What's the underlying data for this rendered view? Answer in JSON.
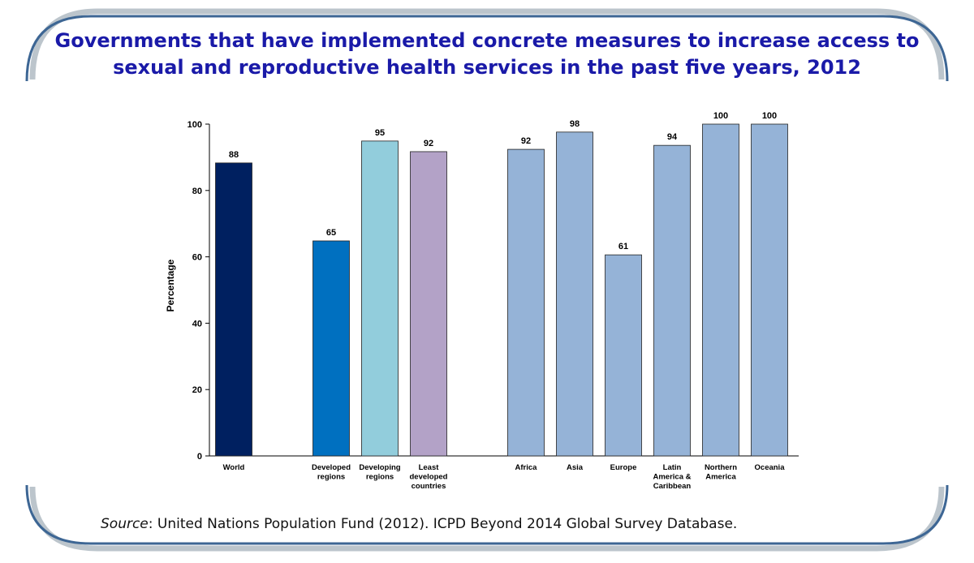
{
  "title": "Governments that have implemented concrete measures to increase access to sexual and reproductive health services in the past five years, 2012",
  "source": {
    "label": "Source",
    "text": ": United Nations Population Fund (2012). ICPD Beyond 2014 Global Survey Database."
  },
  "chart_data": {
    "type": "bar",
    "title": "Governments that have implemented concrete measures to increase access to sexual and reproductive health services in the past five years, 2012",
    "xlabel": "",
    "ylabel": "Percentage",
    "ylim": [
      0,
      100
    ],
    "yticks": [
      0,
      20,
      40,
      60,
      80,
      100
    ],
    "grid": false,
    "legend": "none",
    "categories": [
      "World",
      "Developed regions",
      "Developing regions",
      "Least developed countries",
      "Africa",
      "Asia",
      "Europe",
      "Latin America & Caribbean",
      "Northern America",
      "Oceania"
    ],
    "category_lines": [
      [
        "World"
      ],
      [
        "Developed",
        "regions"
      ],
      [
        "Developing",
        "regions"
      ],
      [
        "Least",
        "developed",
        "countries"
      ],
      [
        "Africa"
      ],
      [
        "Asia"
      ],
      [
        "Europe"
      ],
      [
        "Latin",
        "America &",
        "Caribbean"
      ],
      [
        "Northern",
        "America"
      ],
      [
        "Oceania"
      ]
    ],
    "values": [
      88,
      65,
      95,
      92,
      92,
      98,
      61,
      94,
      100,
      100
    ],
    "plotted_values": [
      88.3,
      64.8,
      94.9,
      91.7,
      92.4,
      97.6,
      60.6,
      93.6,
      100,
      100
    ],
    "colors": [
      "#002060",
      "#0070c0",
      "#92cddc",
      "#b3a2c7",
      "#95b3d7",
      "#95b3d7",
      "#95b3d7",
      "#95b3d7",
      "#95b3d7",
      "#95b3d7"
    ]
  }
}
